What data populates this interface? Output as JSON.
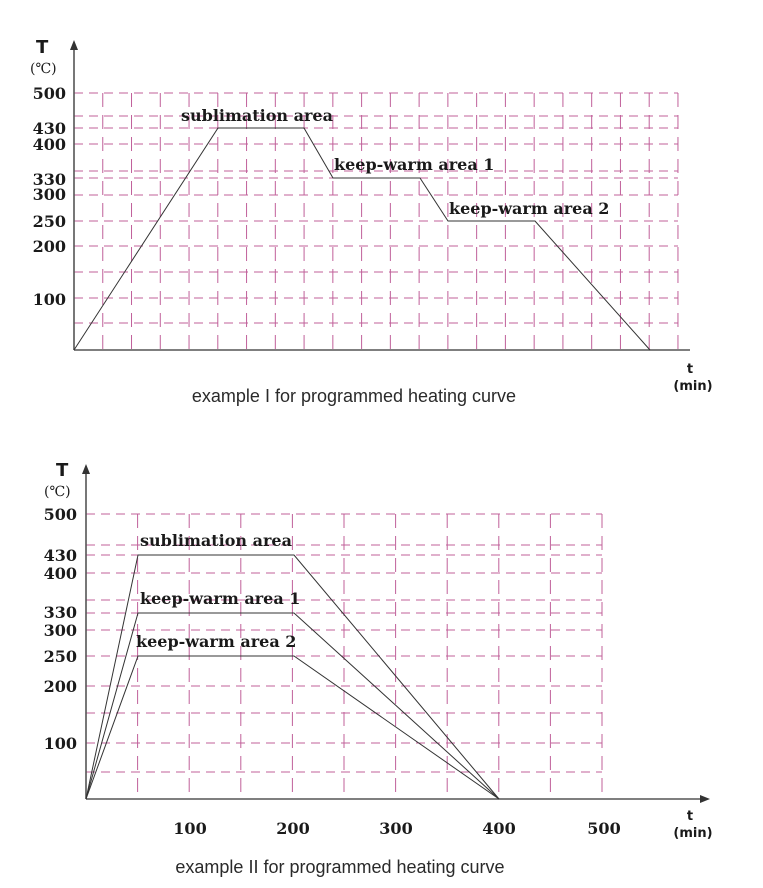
{
  "chart_data": [
    {
      "type": "line",
      "title": "example I for programmed heating curve",
      "ylabel": "T",
      "yunit": "(℃)",
      "xlabel": "t",
      "xunit": "(min)",
      "ylim": [
        0,
        500
      ],
      "yticks": [
        100,
        200,
        250,
        300,
        330,
        400,
        430,
        500
      ],
      "xticks": [],
      "grid": true,
      "series": [
        {
          "name": "programmed heating curve",
          "x": [
            0,
            5,
            8,
            9,
            12,
            13,
            16,
            20
          ],
          "y": [
            0,
            430,
            430,
            330,
            330,
            250,
            250,
            0
          ]
        }
      ],
      "annotations": [
        {
          "text": "sublimation area",
          "x": 6.5,
          "y": 430
        },
        {
          "text": "keep-warm area 1",
          "x": 10.5,
          "y": 330
        },
        {
          "text": "keep-warm area 2",
          "x": 14.5,
          "y": 250
        }
      ]
    },
    {
      "type": "line",
      "title": "example II for programmed heating curve",
      "ylabel": "T",
      "yunit": "(℃)",
      "xlabel": "t",
      "xunit": "(min)",
      "ylim": [
        0,
        500
      ],
      "xlim": [
        0,
        500
      ],
      "yticks": [
        100,
        200,
        250,
        300,
        330,
        400,
        430,
        500
      ],
      "xticks": [
        100,
        200,
        300,
        400,
        500
      ],
      "grid": true,
      "series": [
        {
          "name": "sublimation area",
          "x": [
            0,
            50,
            200,
            400
          ],
          "y": [
            0,
            430,
            430,
            0
          ]
        },
        {
          "name": "keep-warm area 1",
          "x": [
            0,
            50,
            200,
            400
          ],
          "y": [
            0,
            330,
            330,
            0
          ]
        },
        {
          "name": "keep-warm area 2",
          "x": [
            0,
            50,
            200,
            400
          ],
          "y": [
            0,
            250,
            250,
            0
          ]
        }
      ],
      "annotations": [
        {
          "text": "sublimation area",
          "x": 125,
          "y": 430
        },
        {
          "text": "keep-warm area 1",
          "x": 125,
          "y": 330
        },
        {
          "text": "keep-warm area 2",
          "x": 125,
          "y": 250
        }
      ]
    }
  ],
  "chart1": {
    "ylabel": "T",
    "yunit": "(℃)",
    "xlabel": "t",
    "xunit": "(min)",
    "ticks": {
      "t500": "500",
      "t430": "430",
      "t400": "400",
      "t330": "330",
      "t300": "300",
      "t250": "250",
      "t200": "200",
      "t100": "100"
    },
    "labels": {
      "sublimation": "sublimation area",
      "keep1": "keep-warm area 1",
      "keep2": "keep-warm area 2"
    },
    "caption": "example I for programmed heating curve"
  },
  "chart2": {
    "ylabel": "T",
    "yunit": "(℃)",
    "xlabel": "t",
    "xunit": "(min)",
    "ticks": {
      "t500": "500",
      "t430": "430",
      "t400": "400",
      "t330": "330",
      "t300": "300",
      "t250": "250",
      "t200": "200",
      "t100": "100"
    },
    "xticks": {
      "x100": "100",
      "x200": "200",
      "x300": "300",
      "x400": "400",
      "x500": "500"
    },
    "labels": {
      "sublimation": "sublimation area",
      "keep1": "keep-warm area 1",
      "keep2": "keep-warm area 2"
    },
    "caption": "example II for programmed heating curve"
  }
}
